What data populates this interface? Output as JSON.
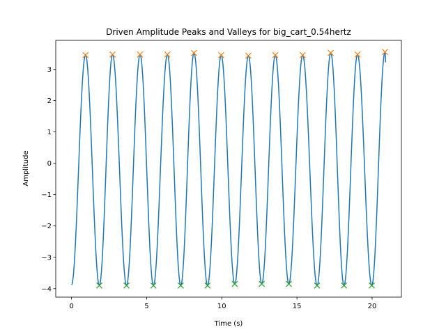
{
  "chart_data": {
    "type": "line",
    "title": "Driven Amplitude Peaks and Valleys for big_cart_0.54hertz",
    "xlabel": "Time (s)",
    "ylabel": "Amplitude",
    "xlim": [
      -1.05,
      21.95
    ],
    "ylim": [
      -4.27,
      3.92
    ],
    "xticks": [
      0,
      5,
      10,
      15,
      20
    ],
    "yticks": [
      -4,
      -3,
      -2,
      -1,
      0,
      1,
      2,
      3
    ],
    "xtick_labels": [
      "0",
      "5",
      "10",
      "15",
      "20"
    ],
    "ytick_labels": [
      "−4",
      "−3",
      "−2",
      "−1",
      "0",
      "1",
      "2",
      "3"
    ],
    "grid": false,
    "series": [
      {
        "kind": "line",
        "color": "#1f77b4",
        "frequency_hz": 0.54,
        "x_range": [
          0.0,
          20.9
        ],
        "y_start": -3.88,
        "y_end": 3.22,
        "extrema_x": [
          0.93,
          1.85,
          2.73,
          3.66,
          4.56,
          5.45,
          6.38,
          7.27,
          8.15,
          9.05,
          9.96,
          10.86,
          11.77,
          12.66,
          13.56,
          14.46,
          15.38,
          16.34,
          17.25,
          18.13,
          19.03,
          19.98,
          20.86
        ],
        "extrema_y": [
          3.45,
          -3.9,
          3.47,
          -3.9,
          3.47,
          -3.9,
          3.47,
          -3.9,
          3.52,
          -3.9,
          3.45,
          -3.85,
          3.43,
          -3.85,
          3.45,
          -3.85,
          3.45,
          -3.9,
          3.52,
          -3.9,
          3.47,
          -3.9,
          3.55
        ]
      },
      {
        "kind": "markers",
        "marker": "x",
        "color": "#ff7f0e",
        "x": [
          0.93,
          2.73,
          4.56,
          6.38,
          8.15,
          9.96,
          11.77,
          13.56,
          15.38,
          17.25,
          19.03,
          20.86
        ],
        "y": [
          3.45,
          3.47,
          3.47,
          3.47,
          3.52,
          3.45,
          3.43,
          3.45,
          3.45,
          3.52,
          3.47,
          3.55
        ]
      },
      {
        "kind": "markers",
        "marker": "x",
        "color": "#2ca02c",
        "x": [
          1.85,
          3.66,
          5.45,
          7.27,
          9.05,
          10.86,
          12.66,
          14.46,
          16.34,
          18.13,
          19.98
        ],
        "y": [
          -3.9,
          -3.9,
          -3.9,
          -3.9,
          -3.9,
          -3.85,
          -3.85,
          -3.85,
          -3.9,
          -3.9,
          -3.9
        ]
      }
    ]
  }
}
